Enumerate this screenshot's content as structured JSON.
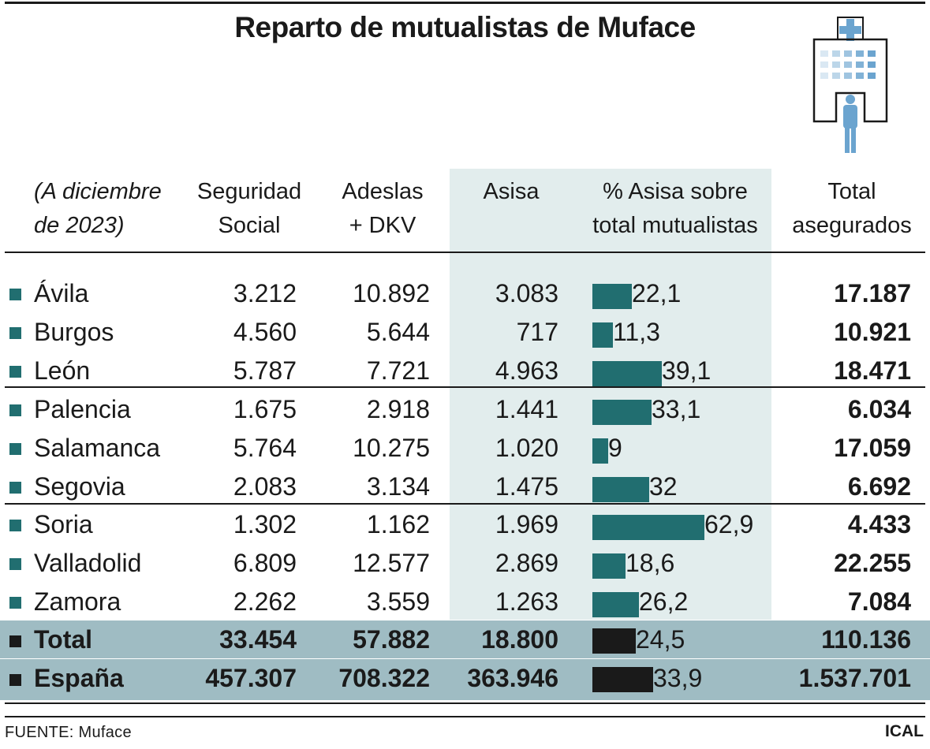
{
  "title": "Reparto de mutualistas de Muface",
  "header": {
    "note": [
      "(A diciembre",
      "de 2023)"
    ],
    "ss": [
      "Seguridad",
      "Social"
    ],
    "adeslas": [
      "Adeslas",
      "+ DKV"
    ],
    "asisa": [
      "Asisa",
      ""
    ],
    "pct": [
      "% Asisa sobre",
      "total mutualistas"
    ],
    "total": [
      "Total",
      "asegurados"
    ]
  },
  "colors": {
    "teal": "#216e70",
    "band": "#e2eded",
    "total_bg": "#9fbcc3",
    "ink": "#1a1a1a",
    "icon": "#6ba4cf"
  },
  "icons": {
    "illustration": "hospital-icon"
  },
  "chart_data": {
    "type": "table",
    "columns": [
      "Seguridad Social",
      "Adeslas + DKV",
      "Asisa",
      "% Asisa sobre total mutualistas",
      "Total asegurados"
    ],
    "bar_column": "% Asisa sobre total mutualistas",
    "rows": [
      {
        "name": "Ávila",
        "ss": "3.212",
        "adeslas": "10.892",
        "asisa": "3.083",
        "pct": "22,1",
        "pct_value": 22.1,
        "total": "17.187"
      },
      {
        "name": "Burgos",
        "ss": "4.560",
        "adeslas": "5.644",
        "asisa": "717",
        "pct": "11,3",
        "pct_value": 11.3,
        "total": "10.921"
      },
      {
        "name": "León",
        "ss": "5.787",
        "adeslas": "7.721",
        "asisa": "4.963",
        "pct": "39,1",
        "pct_value": 39.1,
        "total": "18.471"
      },
      {
        "name": "Palencia",
        "ss": "1.675",
        "adeslas": "2.918",
        "asisa": "1.441",
        "pct": "33,1",
        "pct_value": 33.1,
        "total": "6.034"
      },
      {
        "name": "Salamanca",
        "ss": "5.764",
        "adeslas": "10.275",
        "asisa": "1.020",
        "pct": "9",
        "pct_value": 9,
        "total": "17.059"
      },
      {
        "name": "Segovia",
        "ss": "2.083",
        "adeslas": "3.134",
        "asisa": "1.475",
        "pct": "32",
        "pct_value": 32,
        "total": "6.692"
      },
      {
        "name": "Soria",
        "ss": "1.302",
        "adeslas": "1.162",
        "asisa": "1.969",
        "pct": "62,9",
        "pct_value": 62.9,
        "total": "4.433"
      },
      {
        "name": "Valladolid",
        "ss": "6.809",
        "adeslas": "12.577",
        "asisa": "2.869",
        "pct": "18,6",
        "pct_value": 18.6,
        "total": "22.255"
      },
      {
        "name": "Zamora",
        "ss": "2.262",
        "adeslas": "3.559",
        "asisa": "1.263",
        "pct": "26,2",
        "pct_value": 26.2,
        "total": "7.084"
      }
    ],
    "totals": [
      {
        "name": "Total",
        "ss": "33.454",
        "adeslas": "57.882",
        "asisa": "18.800",
        "pct": "24,5",
        "pct_value": 24.5,
        "total": "110.136"
      },
      {
        "name": "España",
        "ss": "457.307",
        "adeslas": "708.322",
        "asisa": "363.946",
        "pct": "33,9",
        "pct_value": 33.9,
        "total": "1.537.701"
      }
    ]
  },
  "footer": {
    "source": "FUENTE: Muface",
    "brand": "ICAL"
  }
}
